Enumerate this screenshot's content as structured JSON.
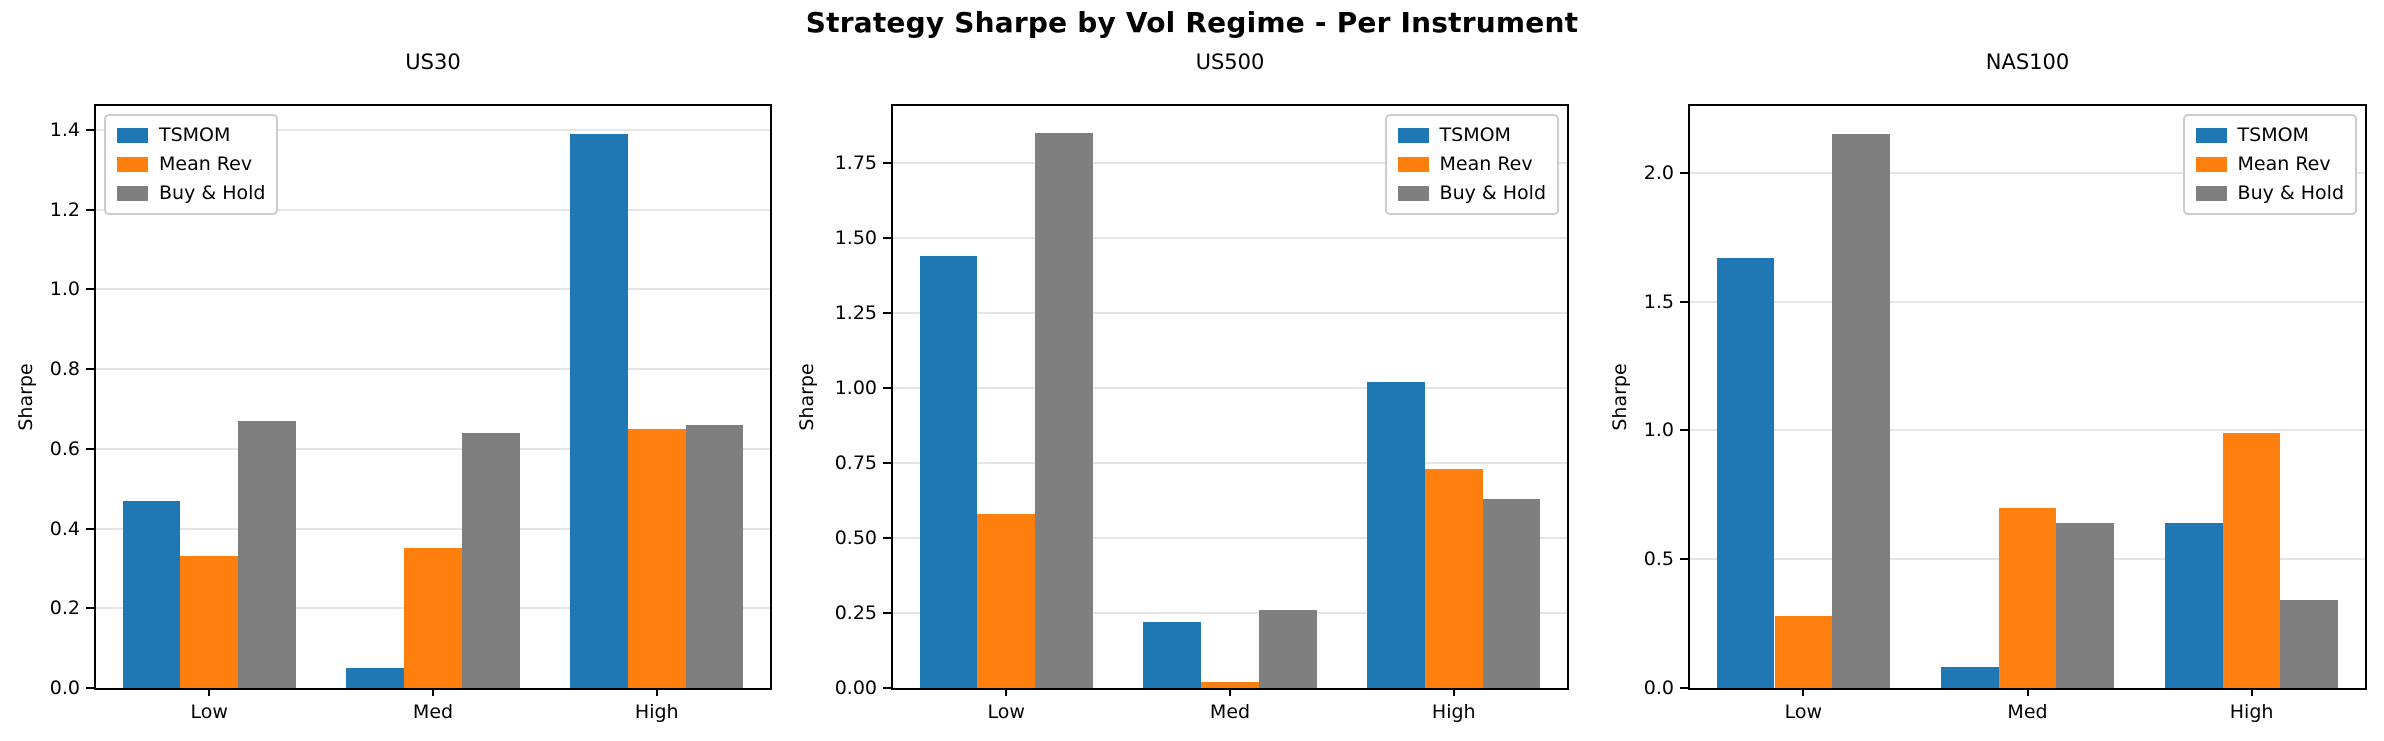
{
  "figure": {
    "title": "Strategy Sharpe by Vol Regime - Per Instrument"
  },
  "colors": {
    "tsmom": "#1f77b4",
    "mean_rev": "#ff7f0e",
    "buy_hold": "#7f7f7f",
    "grid": "#e5e5e5",
    "spine": "#000000"
  },
  "chart_data": [
    {
      "type": "bar",
      "title": "US30",
      "ylabel": "Sharpe",
      "categories": [
        "Low",
        "Med",
        "High"
      ],
      "series": [
        {
          "name": "TSMOM",
          "color": "#1f77b4",
          "values": [
            0.47,
            0.05,
            1.39
          ]
        },
        {
          "name": "Mean Rev",
          "color": "#ff7f0e",
          "values": [
            0.33,
            0.35,
            0.65
          ]
        },
        {
          "name": "Buy & Hold",
          "color": "#7f7f7f",
          "values": [
            0.67,
            0.64,
            0.66
          ]
        }
      ],
      "yticks": [
        0.0,
        0.2,
        0.4,
        0.6,
        0.8,
        1.0,
        1.2,
        1.4
      ],
      "ytick_labels": [
        "0.0",
        "0.2",
        "0.4",
        "0.6",
        "0.8",
        "1.0",
        "1.2",
        "1.4"
      ],
      "ylim": [
        0,
        1.46
      ],
      "grid": true,
      "legend_position": "upper-left"
    },
    {
      "type": "bar",
      "title": "US500",
      "ylabel": "Sharpe",
      "categories": [
        "Low",
        "Med",
        "High"
      ],
      "series": [
        {
          "name": "TSMOM",
          "color": "#1f77b4",
          "values": [
            1.44,
            0.22,
            1.02
          ]
        },
        {
          "name": "Mean Rev",
          "color": "#ff7f0e",
          "values": [
            0.58,
            0.02,
            0.73
          ]
        },
        {
          "name": "Buy & Hold",
          "color": "#7f7f7f",
          "values": [
            1.85,
            0.26,
            0.63
          ]
        }
      ],
      "yticks": [
        0.0,
        0.25,
        0.5,
        0.75,
        1.0,
        1.25,
        1.5,
        1.75
      ],
      "ytick_labels": [
        "0.00",
        "0.25",
        "0.50",
        "0.75",
        "1.00",
        "1.25",
        "1.50",
        "1.75"
      ],
      "ylim": [
        0,
        1.94
      ],
      "grid": true,
      "legend_position": "upper-right"
    },
    {
      "type": "bar",
      "title": "NAS100",
      "ylabel": "Sharpe",
      "categories": [
        "Low",
        "Med",
        "High"
      ],
      "series": [
        {
          "name": "TSMOM",
          "color": "#1f77b4",
          "values": [
            1.67,
            0.08,
            0.64
          ]
        },
        {
          "name": "Mean Rev",
          "color": "#ff7f0e",
          "values": [
            0.28,
            0.7,
            0.99
          ]
        },
        {
          "name": "Buy & Hold",
          "color": "#7f7f7f",
          "values": [
            2.15,
            0.64,
            0.34
          ]
        }
      ],
      "yticks": [
        0.0,
        0.5,
        1.0,
        1.5,
        2.0
      ],
      "ytick_labels": [
        "0.0",
        "0.5",
        "1.0",
        "1.5",
        "2.0"
      ],
      "ylim": [
        0,
        2.26
      ],
      "grid": true,
      "legend_position": "upper-right"
    }
  ]
}
